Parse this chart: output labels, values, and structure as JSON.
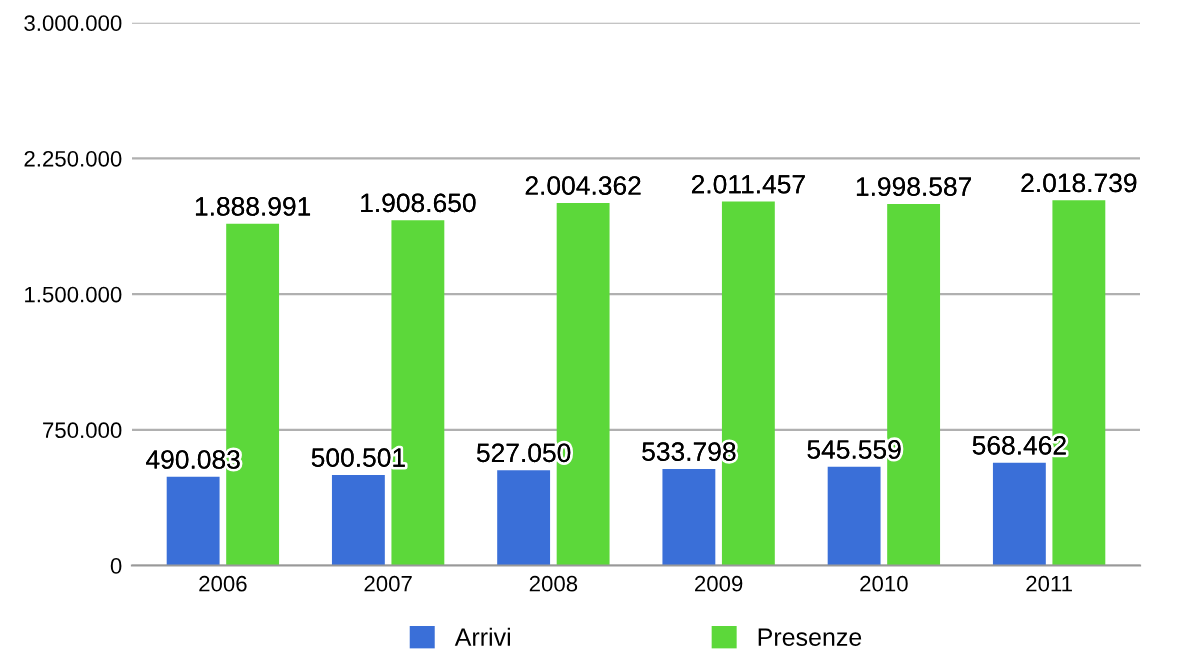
{
  "chart_data": {
    "type": "bar",
    "categories": [
      "2006",
      "2007",
      "2008",
      "2009",
      "2010",
      "2011"
    ],
    "series": [
      {
        "name": "Arrivi",
        "color": "#3a6fd8",
        "values": [
          490083,
          500501,
          527050,
          533798,
          545559,
          568462
        ],
        "value_labels": [
          "490.083",
          "500.501",
          "527.050",
          "533.798",
          "545.559",
          "568.462"
        ]
      },
      {
        "name": "Presenze",
        "color": "#5cd83a",
        "values": [
          1888991,
          1908650,
          2004362,
          2011457,
          1998587,
          2018739
        ],
        "value_labels": [
          "1.888.991",
          "1.908.650",
          "2.004.362",
          "2.011.457",
          "1.998.587",
          "2.018.739"
        ]
      }
    ],
    "ylim": [
      0,
      3000000
    ],
    "yticks": [
      {
        "value": 0,
        "label": "0"
      },
      {
        "value": 750000,
        "label": "750.000"
      },
      {
        "value": 1500000,
        "label": "1.500.000"
      },
      {
        "value": 2250000,
        "label": "2.250.000"
      },
      {
        "value": 3000000,
        "label": "3.000.000"
      }
    ],
    "grid": "y",
    "legend": "bottom"
  }
}
